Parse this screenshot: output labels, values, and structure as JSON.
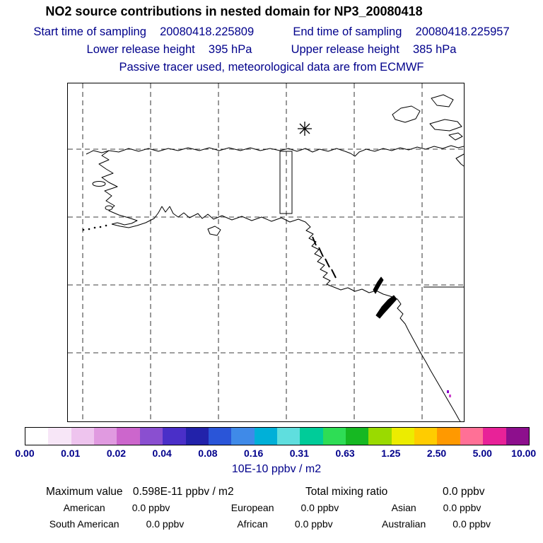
{
  "header": {
    "title": "NO2 source contributions in nested domain for NP3_20080418",
    "sampling": {
      "start_label": "Start time of sampling",
      "start_value": "20080418.225809",
      "end_label": "End time of sampling",
      "end_value": "20080418.225957"
    },
    "release": {
      "lower_label": "Lower release height",
      "lower_value": "395 hPa",
      "upper_label": "Upper release height",
      "upper_value": "385 hPa"
    },
    "tracer_note": "Passive tracer used, meteorological data are from ECMWF"
  },
  "colorbar": {
    "tick_labels": [
      "0.00",
      "0.01",
      "0.02",
      "0.04",
      "0.08",
      "0.16",
      "0.31",
      "0.63",
      "1.25",
      "2.50",
      "5.00",
      "10.00"
    ],
    "unit": "10E-10 ppbv / m2",
    "colors": [
      "#ffffff",
      "#f7e6f7",
      "#eec4ee",
      "#e09ae0",
      "#cc66cc",
      "#8a4fd0",
      "#4a2fc8",
      "#2222aa",
      "#2a55d8",
      "#3f8ae8",
      "#00b0d8",
      "#5fdede",
      "#00cc99",
      "#2edd55",
      "#16b822",
      "#9ada00",
      "#ecec00",
      "#ffcc00",
      "#ff9900",
      "#ff7096",
      "#e82298",
      "#8d0f8d"
    ]
  },
  "stats": {
    "max_label": "Maximum value",
    "max_value": "0.598E-11 ppbv / m2",
    "total_label": "Total mixing ratio",
    "total_value": "0.0 ppbv",
    "regions": [
      {
        "label": "American",
        "value": "0.0 ppbv"
      },
      {
        "label": "European",
        "value": "0.0 ppbv"
      },
      {
        "label": "Asian",
        "value": "0.0 ppbv"
      },
      {
        "label": "South American",
        "value": "0.0 ppbv"
      },
      {
        "label": "African",
        "value": "0.0 ppbv"
      },
      {
        "label": "Australian",
        "value": "0.0 ppbv"
      }
    ]
  },
  "theme": {
    "heading_text": "#00008B",
    "title_text": "#000000",
    "map_border": "#000000"
  },
  "chart_data": {
    "type": "heatmap",
    "title": "NO2 source contributions in nested domain for NP3_20080418",
    "subtitle_lines": [
      "Start time of sampling 20080418.225809   End time of sampling 20080418.225957",
      "Lower release height 395 hPa   Upper release height 385 hPa",
      "Passive tracer used, meteorological data are from ECMWF"
    ],
    "colorbar_ticks": [
      0.0,
      0.01,
      0.02,
      0.04,
      0.08,
      0.16,
      0.31,
      0.63,
      1.25,
      2.5,
      5.0,
      10.0
    ],
    "colorbar_unit": "10E-10 ppbv / m2",
    "maximum_value": "0.598E-11 ppbv / m2",
    "total_mixing_ratio_ppbv": 0.0,
    "source_contributions_ppbv": {
      "American": 0.0,
      "European": 0.0,
      "Asian": 0.0,
      "South American": 0.0,
      "African": 0.0,
      "Australian": 0.0
    },
    "layout": {
      "map_grid": "dashed lat/lon lines, 6 vertical x 4 horizontal",
      "legend_position": "bottom colorbar",
      "features": [
        "coastline of Alaska and western North America",
        "release box rectangle",
        "asterisk release marker",
        "small purple concentration patch near lower-right coast"
      ]
    }
  }
}
